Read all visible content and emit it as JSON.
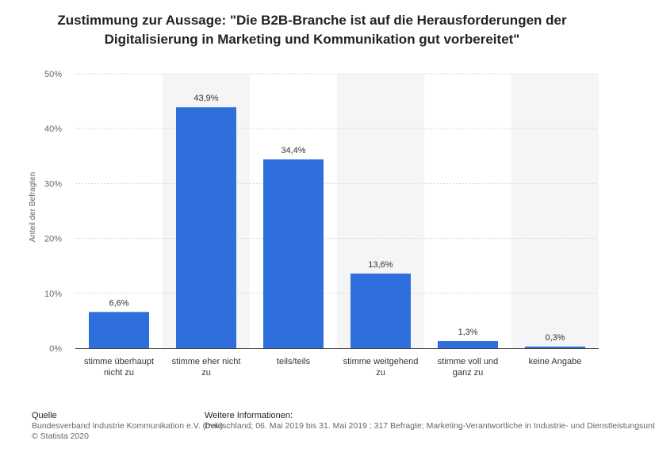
{
  "title_line1": "Zustimmung zur Aussage: \"Die B2B-Branche ist auf die Herausforderungen der",
  "title_line2": "Digitalisierung in Marketing und Kommunikation gut vorbereitet\"",
  "chart_data": {
    "type": "bar",
    "title": "Zustimmung zur Aussage: \"Die B2B-Branche ist auf die Herausforderungen der Digitalisierung in Marketing und Kommunikation gut vorbereitet\"",
    "xlabel": "",
    "ylabel": "Anteil der Befragten",
    "ylim": [
      0,
      50
    ],
    "yticks": [
      "0%",
      "10%",
      "20%",
      "30%",
      "40%",
      "50%"
    ],
    "grid": true,
    "categories": [
      [
        "stimme überhaupt",
        "nicht zu"
      ],
      [
        "stimme eher nicht",
        "zu"
      ],
      [
        "teils/teils"
      ],
      [
        "stimme weitgehend",
        "zu"
      ],
      [
        "stimme voll und",
        "ganz zu"
      ],
      [
        "keine Angabe"
      ]
    ],
    "values": [
      6.6,
      43.9,
      34.4,
      13.6,
      1.3,
      0.3
    ],
    "value_labels": [
      "6,6%",
      "43,9%",
      "34,4%",
      "13,6%",
      "1,3%",
      "0,3%"
    ],
    "bar_color": "#2f6fdb",
    "band_color": "#f5f5f5",
    "grid_color": "#d8d8d8"
  },
  "footer": {
    "source_heading": "Quelle",
    "source_line1": "Bundesverband Industrie Kommunikation e.V. (bvik)",
    "source_line2": "© Statista 2020",
    "info_heading": "Weitere Informationen:",
    "info_text": "Deutschland; 06. Mai 2019 bis 31. Mai 2019 ; 317 Befragte; Marketing-Verantwortliche in Industrie- und Dienstleistungsunt"
  }
}
